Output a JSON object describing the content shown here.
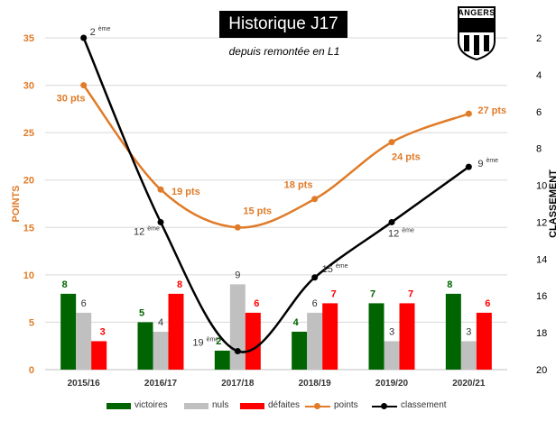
{
  "header": {
    "title": "Historique J17",
    "subtitle": "depuis remontée en L1",
    "logo_text": "ANGERS"
  },
  "axes": {
    "left_label": "POINTS",
    "right_label": "CLASSEMENT"
  },
  "legend": {
    "victoires": "victoires",
    "nuls": "nuls",
    "defaites": "défaites",
    "points": "points",
    "classement": "classement"
  },
  "colors": {
    "victoires": "#006400",
    "nuls": "#c0c0c0",
    "defaites": "#ff0000",
    "points": "#e07b28",
    "classement": "#000000"
  },
  "chart_data": {
    "type": "bar",
    "categories": [
      "2015/16",
      "2016/17",
      "2017/18",
      "2018/19",
      "2019/20",
      "2020/21"
    ],
    "series": [
      {
        "name": "victoires",
        "type": "bar",
        "axis": "left",
        "values": [
          8,
          5,
          2,
          4,
          7,
          8
        ],
        "labels": [
          "8",
          "5",
          "2",
          "4",
          "7",
          "8"
        ]
      },
      {
        "name": "nuls",
        "type": "bar",
        "axis": "left",
        "values": [
          6,
          4,
          9,
          6,
          3,
          3
        ],
        "labels": [
          "6",
          "4",
          "9",
          "6",
          "3",
          "3"
        ]
      },
      {
        "name": "défaites",
        "type": "bar",
        "axis": "left",
        "values": [
          3,
          8,
          6,
          7,
          7,
          6
        ],
        "labels": [
          "3",
          "8",
          "6",
          "7",
          "7",
          "6"
        ]
      },
      {
        "name": "points",
        "type": "line",
        "axis": "left",
        "values": [
          30,
          19,
          15,
          18,
          24,
          27
        ],
        "labels": [
          "30 pts",
          "19 pts",
          "15 pts",
          "18 pts",
          "24 pts",
          "27 pts"
        ]
      },
      {
        "name": "classement",
        "type": "line",
        "axis": "right",
        "values": [
          2,
          12,
          19,
          15,
          12,
          9
        ],
        "labels": [
          "2",
          "12",
          "19",
          "15",
          "12",
          "9"
        ],
        "label_suffix": "ème"
      }
    ],
    "y_left": {
      "label": "POINTS",
      "range": [
        0,
        35
      ],
      "ticks": [
        "0",
        "5",
        "10",
        "15",
        "20",
        "25",
        "30",
        "35"
      ]
    },
    "y_right": {
      "label": "CLASSEMENT",
      "range": [
        2,
        20
      ],
      "inverted": true,
      "ticks": [
        "2",
        "4",
        "6",
        "8",
        "10",
        "12",
        "14",
        "16",
        "18",
        "20"
      ]
    },
    "grid": "horizontal",
    "legend_position": "bottom"
  }
}
